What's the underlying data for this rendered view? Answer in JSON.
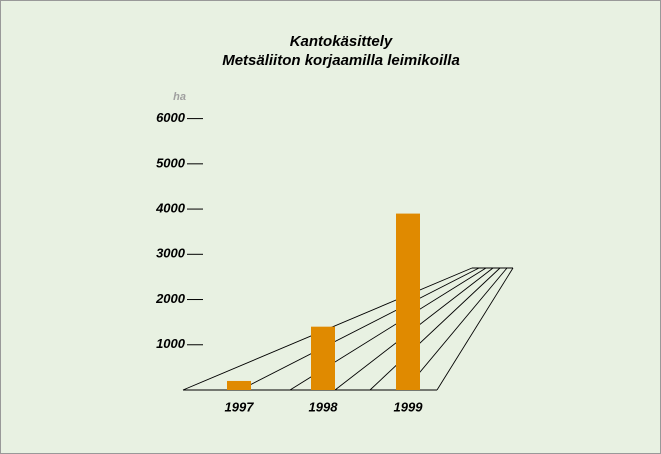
{
  "chart_data": {
    "type": "bar",
    "title": "Kantokäsittely",
    "subtitle": "Metsäliiton korjaamilla leimikoilla",
    "y_label": "ha",
    "categories": [
      "1997",
      "1998",
      "1999"
    ],
    "values": [
      200,
      1400,
      3900
    ],
    "color": "#e08a00",
    "ylim": [
      0,
      6000
    ],
    "yticks": [
      1000,
      2000,
      3000,
      4000,
      5000,
      6000
    ]
  }
}
